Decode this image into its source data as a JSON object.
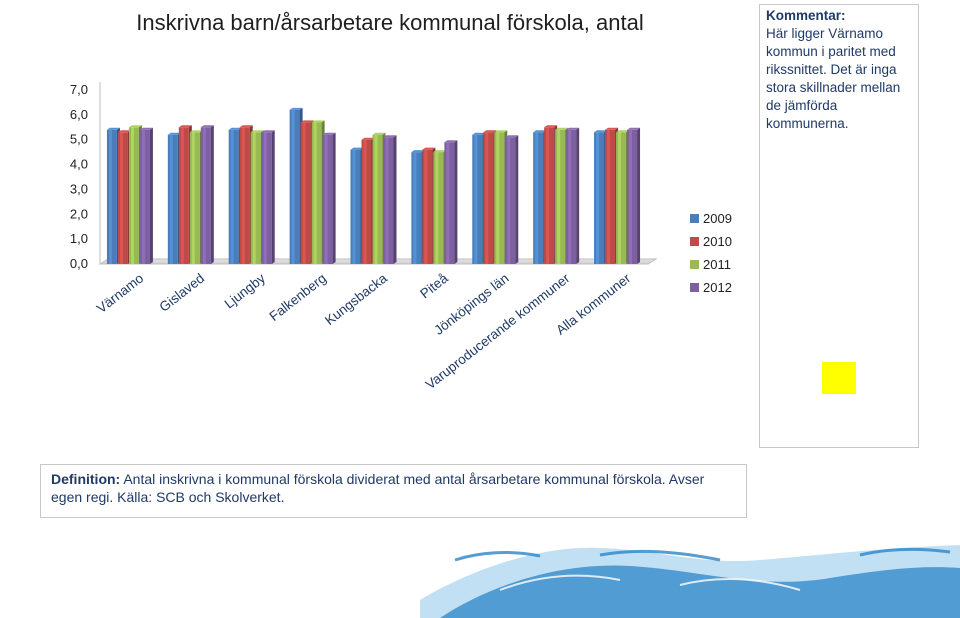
{
  "chart_data": {
    "type": "bar",
    "title": "Inskrivna barn/årsarbetare kommunal förskola, antal",
    "categories": [
      "Värnamo",
      "Gislaved",
      "Ljungby",
      "Falkenberg",
      "Kungsbacka",
      "Piteå",
      "Jönköpings län",
      "Varuproducerande kommuner",
      "Alla kommuner"
    ],
    "series": [
      {
        "name": "2009",
        "color": "#4a7ebb",
        "values": [
          5.4,
          5.2,
          5.4,
          6.2,
          4.6,
          4.5,
          5.2,
          5.3,
          5.3
        ]
      },
      {
        "name": "2010",
        "color": "#be4b48",
        "values": [
          5.3,
          5.5,
          5.5,
          5.7,
          5.0,
          4.6,
          5.3,
          5.5,
          5.4
        ]
      },
      {
        "name": "2011",
        "color": "#98b954",
        "values": [
          5.5,
          5.3,
          5.3,
          5.7,
          5.2,
          4.5,
          5.3,
          5.4,
          5.3
        ]
      },
      {
        "name": "2012",
        "color": "#7d60a0",
        "values": [
          5.4,
          5.5,
          5.3,
          5.2,
          5.1,
          4.9,
          5.1,
          5.4,
          5.4
        ]
      }
    ],
    "yticks": [
      "0,0",
      "1,0",
      "2,0",
      "3,0",
      "4,0",
      "5,0",
      "6,0",
      "7,0"
    ],
    "ylim": [
      0,
      7
    ],
    "legend_position": "right",
    "grid": false
  },
  "comment": {
    "heading": "Kommentar:",
    "text": " Här ligger Värnamo kommun i paritet med rikssnittet.  Det är inga stora skillnader mellan de jämförda kommunerna."
  },
  "definition": {
    "label": "Definition:",
    "text": " Antal inskrivna i kommunal förskola dividerat med antal årsarbetare kommunal förskola. Avser egen regi. Källa: SCB och Skolverket."
  },
  "colors": {
    "wave_dark": "#2a86c8",
    "wave_light": "#8ec7ea",
    "highlight_square": "#ffff00"
  }
}
